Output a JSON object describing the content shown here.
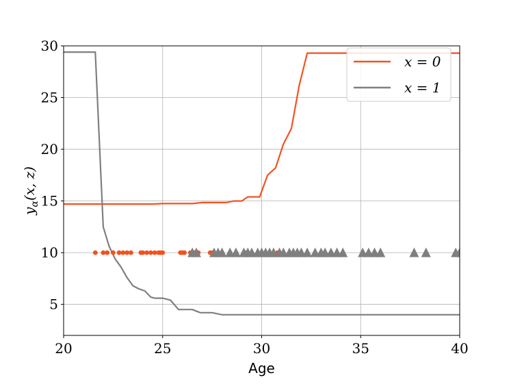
{
  "chart_data": {
    "type": "line",
    "xlabel": "Age",
    "ylabel": "y",
    "ylabel_sub": "α",
    "ylabel_args": "(x, z)",
    "xlim": [
      20,
      40
    ],
    "ylim": [
      2,
      30
    ],
    "xticks": [
      20,
      25,
      30,
      35,
      40
    ],
    "yticks": [
      5,
      10,
      15,
      20,
      25,
      30
    ],
    "grid": true,
    "legend_position": "top-right",
    "series": [
      {
        "name": "x = 0",
        "color": "#f4511e",
        "x": [
          20,
          24.5,
          25,
          26.5,
          27,
          28.2,
          28.6,
          29.0,
          29.3,
          29.9,
          30.3,
          30.7,
          31.1,
          31.5,
          31.9,
          32.3,
          40
        ],
        "y": [
          14.7,
          14.7,
          14.75,
          14.75,
          14.85,
          14.85,
          15.0,
          15.0,
          15.4,
          15.4,
          17.5,
          18.2,
          20.5,
          22.0,
          26.2,
          29.3,
          29.3
        ]
      },
      {
        "name": "x = 1",
        "color": "#7f7f7f",
        "x": [
          20,
          21.6,
          22.0,
          22.3,
          22.6,
          22.9,
          23.2,
          23.5,
          23.8,
          24.1,
          24.4,
          24.6,
          25.0,
          25.4,
          25.8,
          26.5,
          26.9,
          27.5,
          28.0,
          28.5,
          40
        ],
        "y": [
          29.4,
          29.4,
          12.5,
          10.6,
          9.4,
          8.6,
          7.6,
          6.8,
          6.5,
          6.3,
          5.7,
          5.6,
          5.6,
          5.4,
          4.5,
          4.5,
          4.2,
          4.2,
          4.0,
          4.0,
          4.0
        ]
      }
    ],
    "markers": [
      {
        "series": "x = 0",
        "shape": "circle",
        "color": "#f4511e",
        "y": 10,
        "x": [
          21.6,
          22.0,
          22.2,
          22.5,
          22.8,
          23.0,
          23.2,
          23.4,
          23.9,
          24.0,
          24.2,
          24.4,
          24.6,
          24.8,
          24.9,
          25.0,
          25.9,
          26.0,
          26.1,
          26.4,
          26.6,
          26.8,
          27.4,
          27.5,
          27.6,
          27.8,
          28.4,
          28.7,
          29.2,
          30.8
        ]
      },
      {
        "series": "x = 1",
        "shape": "triangle",
        "color": "#7f7f7f",
        "y": 10,
        "x": [
          26.5,
          26.7,
          27.6,
          27.8,
          28.0,
          28.4,
          28.7,
          29.1,
          29.3,
          29.5,
          29.8,
          30.0,
          30.2,
          30.4,
          30.6,
          30.9,
          31.1,
          31.4,
          31.6,
          31.8,
          32.0,
          32.3,
          32.7,
          33.0,
          33.2,
          33.5,
          33.8,
          34.1,
          35.1,
          35.4,
          35.7,
          36.0,
          37.7,
          38.3,
          39.8,
          40.0
        ]
      }
    ]
  }
}
